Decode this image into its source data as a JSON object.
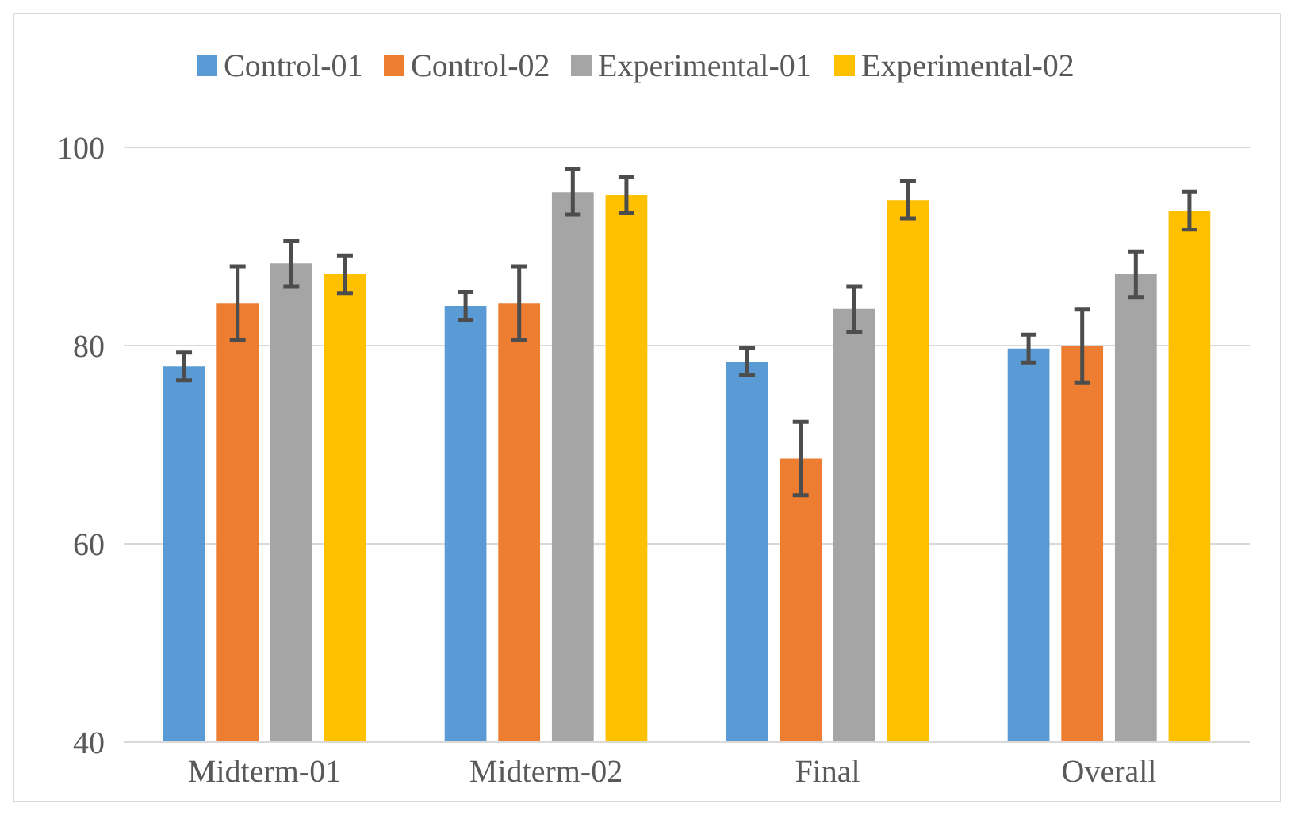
{
  "chart_data": {
    "type": "bar",
    "categories": [
      "Midterm-01",
      "Midterm-02",
      "Final",
      "Overall"
    ],
    "series": [
      {
        "name": "Control-01",
        "color": "#5b9bd5",
        "values": [
          77.9,
          84,
          78.4,
          79.7
        ],
        "errors": [
          1.4,
          1.4,
          1.4,
          1.4
        ]
      },
      {
        "name": "Control-02",
        "color": "#ed7d31",
        "values": [
          84.3,
          84.3,
          68.6,
          80
        ],
        "errors": [
          3.7,
          3.7,
          3.7,
          3.7
        ]
      },
      {
        "name": "Experimental-01",
        "color": "#a5a5a5",
        "values": [
          88.3,
          95.5,
          83.7,
          87.2
        ],
        "errors": [
          2.3,
          2.3,
          2.3,
          2.3
        ]
      },
      {
        "name": "Experimental-02",
        "color": "#ffc000",
        "values": [
          87.2,
          95.2,
          94.7,
          93.6
        ],
        "errors": [
          1.9,
          1.8,
          1.9,
          1.9
        ]
      }
    ],
    "ylim": [
      40,
      100
    ],
    "yticks": [
      40,
      60,
      80,
      100
    ],
    "grid": "y",
    "legend": "top"
  }
}
